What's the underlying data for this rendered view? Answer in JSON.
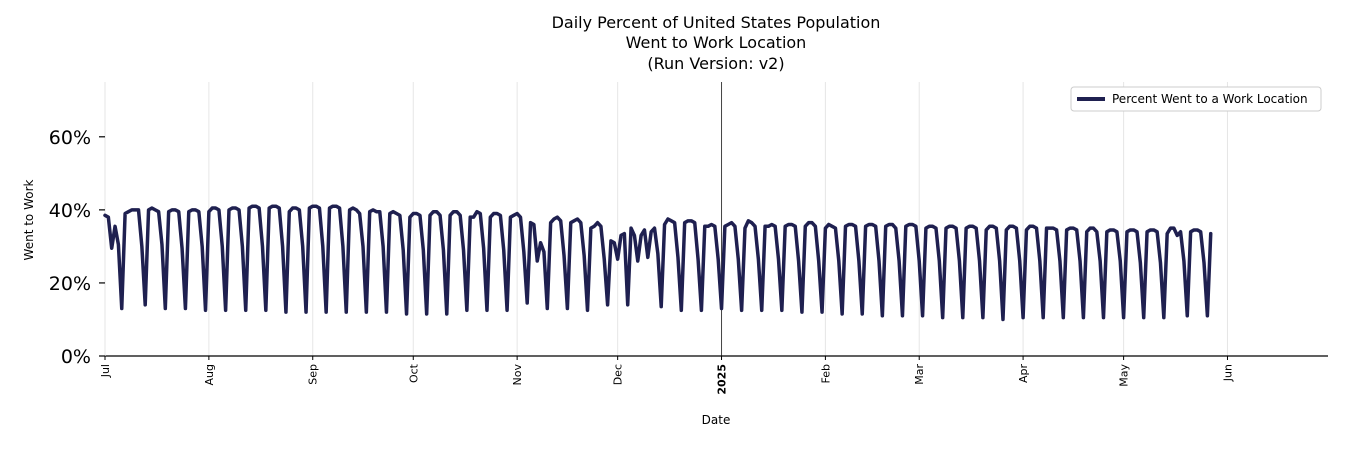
{
  "chart_data": {
    "type": "line",
    "title_lines": [
      "Daily Percent of United States Population",
      "Went to Work Location",
      "(Run Version: v2)"
    ],
    "xlabel": "Date",
    "ylabel": "Went to Work",
    "ylim": [
      0,
      75
    ],
    "yticks": [
      0,
      20,
      40,
      60
    ],
    "ytick_labels": [
      "0%",
      "20%",
      "40%",
      "60%"
    ],
    "x_range_days": [
      0,
      365
    ],
    "xticks": [
      {
        "day": 0,
        "label": "Jul",
        "bold": false
      },
      {
        "day": 31,
        "label": "Aug",
        "bold": false
      },
      {
        "day": 62,
        "label": "Sep",
        "bold": false
      },
      {
        "day": 92,
        "label": "Oct",
        "bold": false
      },
      {
        "day": 123,
        "label": "Nov",
        "bold": false
      },
      {
        "day": 153,
        "label": "Dec",
        "bold": false
      },
      {
        "day": 184,
        "label": "2025",
        "bold": true
      },
      {
        "day": 215,
        "label": "Feb",
        "bold": false
      },
      {
        "day": 243,
        "label": "Mar",
        "bold": false
      },
      {
        "day": 274,
        "label": "Apr",
        "bold": false
      },
      {
        "day": 304,
        "label": "May",
        "bold": false
      },
      {
        "day": 335,
        "label": "Jun",
        "bold": false
      }
    ],
    "vline_day": 184,
    "grid": "vertical",
    "legend_position": "top-right",
    "series": [
      {
        "name": "Percent Went to a Work Location",
        "color": "#1f2050",
        "start_day": 0,
        "values": [
          38.5,
          38.0,
          29.5,
          35.5,
          30.5,
          13.0,
          39.0,
          39.5,
          40.0,
          40.0,
          40.0,
          30.0,
          14.0,
          40.0,
          40.5,
          40.0,
          39.5,
          30.5,
          13.0,
          39.5,
          40.0,
          40.0,
          39.5,
          29.5,
          13.0,
          39.5,
          40.0,
          40.0,
          39.5,
          30.0,
          12.5,
          39.5,
          40.5,
          40.5,
          40.0,
          30.0,
          12.5,
          40.0,
          40.5,
          40.5,
          40.0,
          30.0,
          12.5,
          40.5,
          41.0,
          41.0,
          40.5,
          30.0,
          12.5,
          40.5,
          41.0,
          41.0,
          40.5,
          30.0,
          12.0,
          39.5,
          40.5,
          40.5,
          40.0,
          30.0,
          12.0,
          40.5,
          41.0,
          41.0,
          40.5,
          30.0,
          12.0,
          40.5,
          41.0,
          41.0,
          40.5,
          30.0,
          12.0,
          40.0,
          40.5,
          40.0,
          39.0,
          30.0,
          12.0,
          39.5,
          40.0,
          39.5,
          39.5,
          30.0,
          12.0,
          39.0,
          39.5,
          39.0,
          38.5,
          29.0,
          11.5,
          38.0,
          39.0,
          39.0,
          38.5,
          29.0,
          11.5,
          38.5,
          39.5,
          39.5,
          38.5,
          29.0,
          11.5,
          38.5,
          39.5,
          39.5,
          38.5,
          29.0,
          12.5,
          38.0,
          38.0,
          39.5,
          39.0,
          29.5,
          12.5,
          38.0,
          39.0,
          39.0,
          38.5,
          29.0,
          12.5,
          38.0,
          38.5,
          39.0,
          38.0,
          28.5,
          14.5,
          36.5,
          36.0,
          26.0,
          31.0,
          28.5,
          13.0,
          36.5,
          37.5,
          38.0,
          37.0,
          27.5,
          13.0,
          36.5,
          37.0,
          37.5,
          36.5,
          27.5,
          12.5,
          35.0,
          35.5,
          36.5,
          35.5,
          26.5,
          14.0,
          31.5,
          31.0,
          26.5,
          33.0,
          33.5,
          14.0,
          35.0,
          33.0,
          26.0,
          33.0,
          34.5,
          27.0,
          34.0,
          35.0,
          28.0,
          13.5,
          36.0,
          37.5,
          37.0,
          36.5,
          27.0,
          12.5,
          36.5,
          37.0,
          37.0,
          36.5,
          26.5,
          12.5,
          35.5,
          35.5,
          36.0,
          35.5,
          26.5,
          13.0,
          35.5,
          36.0,
          36.5,
          35.5,
          26.5,
          12.5,
          35.0,
          37.0,
          36.5,
          35.5,
          26.5,
          12.5,
          35.5,
          35.5,
          36.0,
          35.5,
          26.5,
          12.5,
          35.5,
          36.0,
          36.0,
          35.5,
          26.0,
          12.0,
          35.5,
          36.5,
          36.5,
          35.5,
          26.0,
          12.0,
          35.0,
          36.0,
          35.5,
          35.0,
          26.0,
          11.5,
          35.5,
          36.0,
          36.0,
          35.5,
          26.0,
          11.5,
          35.5,
          36.0,
          36.0,
          35.5,
          26.0,
          11.0,
          35.5,
          36.0,
          36.0,
          35.0,
          26.0,
          11.0,
          35.5,
          36.0,
          36.0,
          35.5,
          26.0,
          11.0,
          35.0,
          35.5,
          35.5,
          35.0,
          26.0,
          10.5,
          35.0,
          35.5,
          35.5,
          35.0,
          26.0,
          10.5,
          35.0,
          35.5,
          35.5,
          35.0,
          26.0,
          10.5,
          34.5,
          35.5,
          35.5,
          35.0,
          26.0,
          10.0,
          34.5,
          35.5,
          35.5,
          35.0,
          26.0,
          10.5,
          34.5,
          35.5,
          35.5,
          35.0,
          26.0,
          10.5,
          35.0,
          35.0,
          35.0,
          34.5,
          26.0,
          10.5,
          34.5,
          35.0,
          35.0,
          34.5,
          26.0,
          10.5,
          34.0,
          35.0,
          35.0,
          34.0,
          26.0,
          10.5,
          34.0,
          34.5,
          34.5,
          34.0,
          26.0,
          10.5,
          34.0,
          34.5,
          34.5,
          34.0,
          25.5,
          10.5,
          34.0,
          34.5,
          34.5,
          34.0,
          25.5,
          10.5,
          33.5,
          35.0,
          35.0,
          33.0,
          34.0,
          26.0,
          11.0,
          34.0,
          34.5,
          34.5,
          34.0,
          25.5,
          11.0,
          33.5
        ]
      }
    ]
  }
}
